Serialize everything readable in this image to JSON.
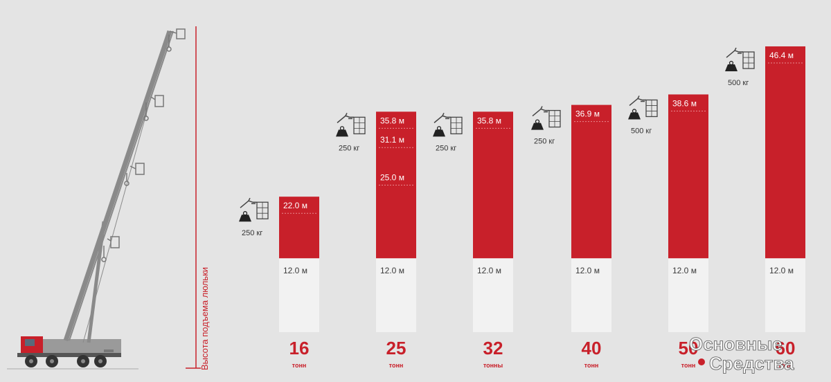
{
  "vertical_label": "Высота подъема люльки",
  "brand": {
    "line1": "Основные",
    "line2": "Средства"
  },
  "colors": {
    "accent": "#c8202a",
    "base": "#f2f2f2",
    "background": "#e4e4e4"
  },
  "chart_data": {
    "type": "bar",
    "ylabel": "Высота подъема люльки",
    "base_height": 12.0,
    "ylim": [
      0,
      49
    ],
    "categories": [
      "16",
      "25",
      "32",
      "40",
      "50",
      "60"
    ],
    "bars": [
      {
        "tons": "16",
        "unit": "тонн",
        "capacity": "250 кг",
        "top": 22.0,
        "top_label": "22.0 м",
        "base_label": "12.0 м",
        "marks": []
      },
      {
        "tons": "25",
        "unit": "тонн",
        "capacity": "250 кг",
        "top": 35.8,
        "top_label": "35.8 м",
        "base_label": "12.0 м",
        "marks": [
          {
            "value": 31.1,
            "label": "31.1 м"
          },
          {
            "value": 25.0,
            "label": "25.0 м"
          }
        ]
      },
      {
        "tons": "32",
        "unit": "тонны",
        "capacity": "250 кг",
        "top": 35.8,
        "top_label": "35.8 м",
        "base_label": "12.0 м",
        "marks": []
      },
      {
        "tons": "40",
        "unit": "тонн",
        "capacity": "250 кг",
        "top": 36.9,
        "top_label": "36.9 м",
        "base_label": "12.0 м",
        "marks": []
      },
      {
        "tons": "50",
        "unit": "тонн",
        "capacity": "500 кг",
        "top": 38.6,
        "top_label": "38.6 м",
        "base_label": "12.0 м",
        "marks": []
      },
      {
        "tons": "60",
        "unit": "тонн",
        "capacity": "500 кг",
        "top": 46.4,
        "top_label": "46.4 м",
        "base_label": "12.0 м",
        "marks": []
      }
    ]
  }
}
